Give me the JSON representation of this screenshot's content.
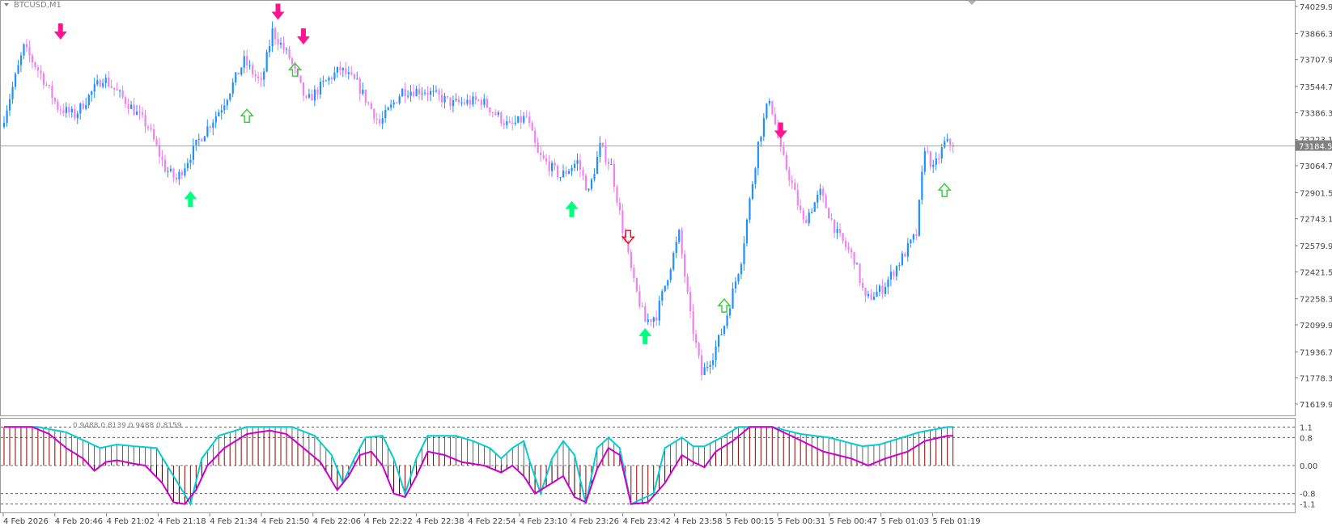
{
  "symbol": "BTCUSD,M1",
  "indicator_label": "0.9488 0.8139 0.9488 0.8159",
  "current_price_label": "73184.50",
  "colors": {
    "bull": "#1E90FF",
    "bear": "#EE82EE",
    "arrow_strong_up": "#00FF7F",
    "arrow_strong_down": "#FF1493",
    "arrow_weak_up": "#32CD32",
    "arrow_weak_down": "#FF0000",
    "osc_upper": "#00CED1",
    "osc_lower": "#CC00CC",
    "histogram": "#8B0000",
    "osc_level_line": "#444444",
    "price_line": "#A0A0A0",
    "current_price_bg": "#808080"
  },
  "price_axis": {
    "labels": [
      "74029.90",
      "73866.30",
      "73707.90",
      "73544.70",
      "73386.30",
      "73223.10",
      "73064.70",
      "72901.50",
      "72743.10",
      "72579.90",
      "72421.50",
      "72258.30",
      "72099.90",
      "71936.70",
      "71778.30",
      "71619.90"
    ]
  },
  "osc_axis": {
    "labels": [
      "1.1",
      "0.8",
      "0.00",
      "-0.8",
      "-1.1"
    ]
  },
  "time_axis": {
    "labels": [
      "4 Feb 2026",
      "4 Feb 20:46",
      "4 Feb 21:02",
      "4 Feb 21:18",
      "4 Feb 21:34",
      "4 Feb 21:50",
      "4 Feb 22:06",
      "4 Feb 22:22",
      "4 Feb 22:38",
      "4 Feb 22:54",
      "4 Feb 23:10",
      "4 Feb 23:26",
      "4 Feb 23:42",
      "4 Feb 23:58",
      "5 Feb 00:15",
      "5 Feb 00:31",
      "5 Feb 00:47",
      "5 Feb 01:03",
      "5 Feb 01:19"
    ]
  },
  "chart_data": {
    "type": "candlestick",
    "symbol": "BTCUSD",
    "timeframe": "M1",
    "ylim": [
      71619.9,
      74029.9
    ],
    "current_price": 73184.5,
    "price_waypoints": [
      [
        0,
        73300
      ],
      [
        8,
        73780
      ],
      [
        14,
        73620
      ],
      [
        20,
        73420
      ],
      [
        26,
        73370
      ],
      [
        36,
        73600
      ],
      [
        45,
        73440
      ],
      [
        52,
        73300
      ],
      [
        58,
        73050
      ],
      [
        62,
        72980
      ],
      [
        66,
        73100
      ],
      [
        70,
        73220
      ],
      [
        78,
        73420
      ],
      [
        86,
        73700
      ],
      [
        92,
        73560
      ],
      [
        96,
        73880
      ],
      [
        102,
        73720
      ],
      [
        108,
        73450
      ],
      [
        114,
        73560
      ],
      [
        120,
        73650
      ],
      [
        126,
        73560
      ],
      [
        134,
        73320
      ],
      [
        142,
        73520
      ],
      [
        150,
        73520
      ],
      [
        160,
        73440
      ],
      [
        170,
        73460
      ],
      [
        180,
        73300
      ],
      [
        186,
        73360
      ],
      [
        190,
        73130
      ],
      [
        198,
        73000
      ],
      [
        204,
        73090
      ],
      [
        208,
        72900
      ],
      [
        212,
        73180
      ],
      [
        216,
        73060
      ],
      [
        220,
        72680
      ],
      [
        224,
        72350
      ],
      [
        228,
        72120
      ],
      [
        232,
        72160
      ],
      [
        236,
        72400
      ],
      [
        240,
        72650
      ],
      [
        244,
        72150
      ],
      [
        248,
        71800
      ],
      [
        252,
        71920
      ],
      [
        256,
        72100
      ],
      [
        262,
        72500
      ],
      [
        268,
        73200
      ],
      [
        272,
        73480
      ],
      [
        276,
        73150
      ],
      [
        280,
        72950
      ],
      [
        284,
        72720
      ],
      [
        290,
        72900
      ],
      [
        296,
        72650
      ],
      [
        302,
        72500
      ],
      [
        306,
        72250
      ],
      [
        312,
        72320
      ],
      [
        318,
        72480
      ],
      [
        324,
        72650
      ],
      [
        327,
        73180
      ],
      [
        330,
        73040
      ],
      [
        334,
        73200
      ],
      [
        337,
        73200
      ]
    ],
    "signals": [
      {
        "type": "down",
        "strength": "strong",
        "index": 20,
        "price": 73780
      },
      {
        "type": "down",
        "strength": "strong",
        "index": 97,
        "price": 73900
      },
      {
        "type": "down",
        "strength": "strong",
        "index": 106,
        "price": 73750
      },
      {
        "type": "up",
        "strength": "weak",
        "index": 103,
        "price": 73740
      },
      {
        "type": "up",
        "strength": "weak",
        "index": 86,
        "price": 73460
      },
      {
        "type": "up",
        "strength": "strong",
        "index": 66,
        "price": 72960
      },
      {
        "type": "up",
        "strength": "strong",
        "index": 201,
        "price": 72900
      },
      {
        "type": "down",
        "strength": "weak",
        "index": 221,
        "price": 72540
      },
      {
        "type": "up",
        "strength": "strong",
        "index": 227,
        "price": 72130
      },
      {
        "type": "up",
        "strength": "weak",
        "index": 255,
        "price": 72310
      },
      {
        "type": "down",
        "strength": "strong",
        "index": 275,
        "price": 73180
      },
      {
        "type": "up",
        "strength": "weak",
        "index": 333,
        "price": 73010
      }
    ],
    "oscillator": {
      "levels": [
        1.1,
        0.8,
        0,
        -0.8,
        -1.1
      ],
      "ylim": [
        -1.2,
        1.2
      ],
      "upper_waypoints": [
        [
          0,
          1.1
        ],
        [
          12,
          1.1
        ],
        [
          22,
          0.95
        ],
        [
          34,
          0.5
        ],
        [
          40,
          0.6
        ],
        [
          46,
          0.55
        ],
        [
          54,
          0.5
        ],
        [
          60,
          -0.3
        ],
        [
          66,
          -1.1
        ],
        [
          70,
          0.2
        ],
        [
          76,
          0.85
        ],
        [
          86,
          1.1
        ],
        [
          102,
          1.1
        ],
        [
          110,
          0.85
        ],
        [
          116,
          0.3
        ],
        [
          120,
          -0.5
        ],
        [
          124,
          0.2
        ],
        [
          128,
          0.8
        ],
        [
          134,
          0.85
        ],
        [
          138,
          0.2
        ],
        [
          142,
          -0.8
        ],
        [
          146,
          0.2
        ],
        [
          150,
          0.85
        ],
        [
          160,
          0.85
        ],
        [
          166,
          0.7
        ],
        [
          172,
          0.5
        ],
        [
          176,
          0.2
        ],
        [
          180,
          0.5
        ],
        [
          184,
          0.7
        ],
        [
          186,
          0.15
        ],
        [
          190,
          -0.8
        ],
        [
          194,
          0.2
        ],
        [
          198,
          0.7
        ],
        [
          202,
          0.3
        ],
        [
          206,
          -1.1
        ],
        [
          210,
          0.5
        ],
        [
          214,
          0.8
        ],
        [
          218,
          0.5
        ],
        [
          222,
          -1.1
        ],
        [
          230,
          -0.8
        ],
        [
          234,
          0.5
        ],
        [
          240,
          0.8
        ],
        [
          244,
          0.55
        ],
        [
          248,
          0.55
        ],
        [
          254,
          0.8
        ],
        [
          260,
          1.1
        ],
        [
          272,
          1.1
        ],
        [
          282,
          0.9
        ],
        [
          292,
          0.8
        ],
        [
          304,
          0.55
        ],
        [
          310,
          0.6
        ],
        [
          318,
          0.8
        ],
        [
          324,
          0.95
        ],
        [
          334,
          1.1
        ]
      ],
      "lower_waypoints": [
        [
          0,
          1.1
        ],
        [
          10,
          1.1
        ],
        [
          16,
          0.9
        ],
        [
          22,
          0.5
        ],
        [
          28,
          0.2
        ],
        [
          32,
          -0.15
        ],
        [
          36,
          0.1
        ],
        [
          40,
          0.15
        ],
        [
          46,
          0.05
        ],
        [
          50,
          0.0
        ],
        [
          56,
          -0.5
        ],
        [
          60,
          -1.05
        ],
        [
          64,
          -1.1
        ],
        [
          68,
          -0.7
        ],
        [
          72,
          0.0
        ],
        [
          78,
          0.5
        ],
        [
          86,
          0.9
        ],
        [
          94,
          1.0
        ],
        [
          100,
          0.9
        ],
        [
          106,
          0.5
        ],
        [
          112,
          0.1
        ],
        [
          118,
          -0.7
        ],
        [
          122,
          -0.3
        ],
        [
          126,
          0.3
        ],
        [
          130,
          0.4
        ],
        [
          134,
          0.0
        ],
        [
          138,
          -0.8
        ],
        [
          142,
          -0.9
        ],
        [
          146,
          -0.3
        ],
        [
          150,
          0.4
        ],
        [
          156,
          0.3
        ],
        [
          162,
          0.1
        ],
        [
          170,
          0.0
        ],
        [
          176,
          -0.2
        ],
        [
          180,
          0.0
        ],
        [
          184,
          -0.3
        ],
        [
          188,
          -0.8
        ],
        [
          194,
          -0.5
        ],
        [
          198,
          -0.3
        ],
        [
          202,
          -0.9
        ],
        [
          206,
          -1.05
        ],
        [
          210,
          -0.1
        ],
        [
          214,
          0.5
        ],
        [
          218,
          0.3
        ],
        [
          222,
          -1.1
        ],
        [
          228,
          -1.05
        ],
        [
          234,
          -0.5
        ],
        [
          240,
          0.3
        ],
        [
          244,
          0.1
        ],
        [
          248,
          -0.05
        ],
        [
          252,
          0.4
        ],
        [
          258,
          0.7
        ],
        [
          264,
          1.1
        ],
        [
          272,
          1.1
        ],
        [
          280,
          0.8
        ],
        [
          290,
          0.4
        ],
        [
          300,
          0.2
        ],
        [
          306,
          0.0
        ],
        [
          312,
          0.2
        ],
        [
          320,
          0.4
        ],
        [
          326,
          0.7
        ],
        [
          334,
          0.85
        ]
      ]
    }
  }
}
